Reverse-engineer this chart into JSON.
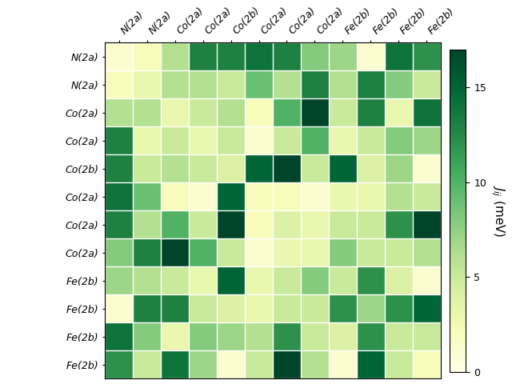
{
  "labels": [
    "N(2a)",
    "N(2a)",
    "Co(2a)",
    "Co(2a)",
    "Co(2b)",
    "Co(2a)",
    "Co(2a)",
    "Co(2a)",
    "Fe(2b)",
    "Fe(2b)",
    "Fe(2b)",
    "Fe(2b)"
  ],
  "matrix": [
    [
      1,
      2,
      6,
      13,
      13,
      14,
      13,
      8,
      7,
      1,
      14,
      12
    ],
    [
      2,
      3,
      6,
      6,
      5,
      9,
      6,
      13,
      6,
      13,
      8,
      5
    ],
    [
      6,
      6,
      3,
      5,
      6,
      2,
      10,
      17,
      5,
      13,
      3,
      14
    ],
    [
      13,
      3,
      5,
      3,
      5,
      1,
      5,
      10,
      3,
      5,
      8,
      7
    ],
    [
      13,
      5,
      6,
      5,
      4,
      15,
      17,
      5,
      15,
      4,
      7,
      1
    ],
    [
      14,
      9,
      2,
      1,
      15,
      2,
      2,
      1,
      3,
      3,
      6,
      5
    ],
    [
      13,
      6,
      10,
      5,
      17,
      2,
      4,
      3,
      5,
      5,
      12,
      17
    ],
    [
      8,
      13,
      17,
      10,
      5,
      1,
      3,
      3,
      8,
      5,
      5,
      6
    ],
    [
      7,
      6,
      5,
      3,
      15,
      3,
      5,
      8,
      5,
      12,
      4,
      1
    ],
    [
      1,
      13,
      13,
      5,
      4,
      3,
      5,
      5,
      12,
      7,
      12,
      15
    ],
    [
      14,
      8,
      3,
      8,
      7,
      6,
      12,
      5,
      4,
      12,
      5,
      5
    ],
    [
      12,
      5,
      14,
      7,
      1,
      5,
      17,
      6,
      1,
      15,
      5,
      2
    ]
  ],
  "vmin": 0,
  "vmax": 17,
  "cmap": "YlGn",
  "colorbar_label": "$J_{ij}$ (meV)",
  "colorbar_ticks": [
    0,
    5,
    10,
    15
  ],
  "figwidth": 6.4,
  "figheight": 4.8,
  "label_fontsize": 9,
  "cbar_fontsize": 11
}
